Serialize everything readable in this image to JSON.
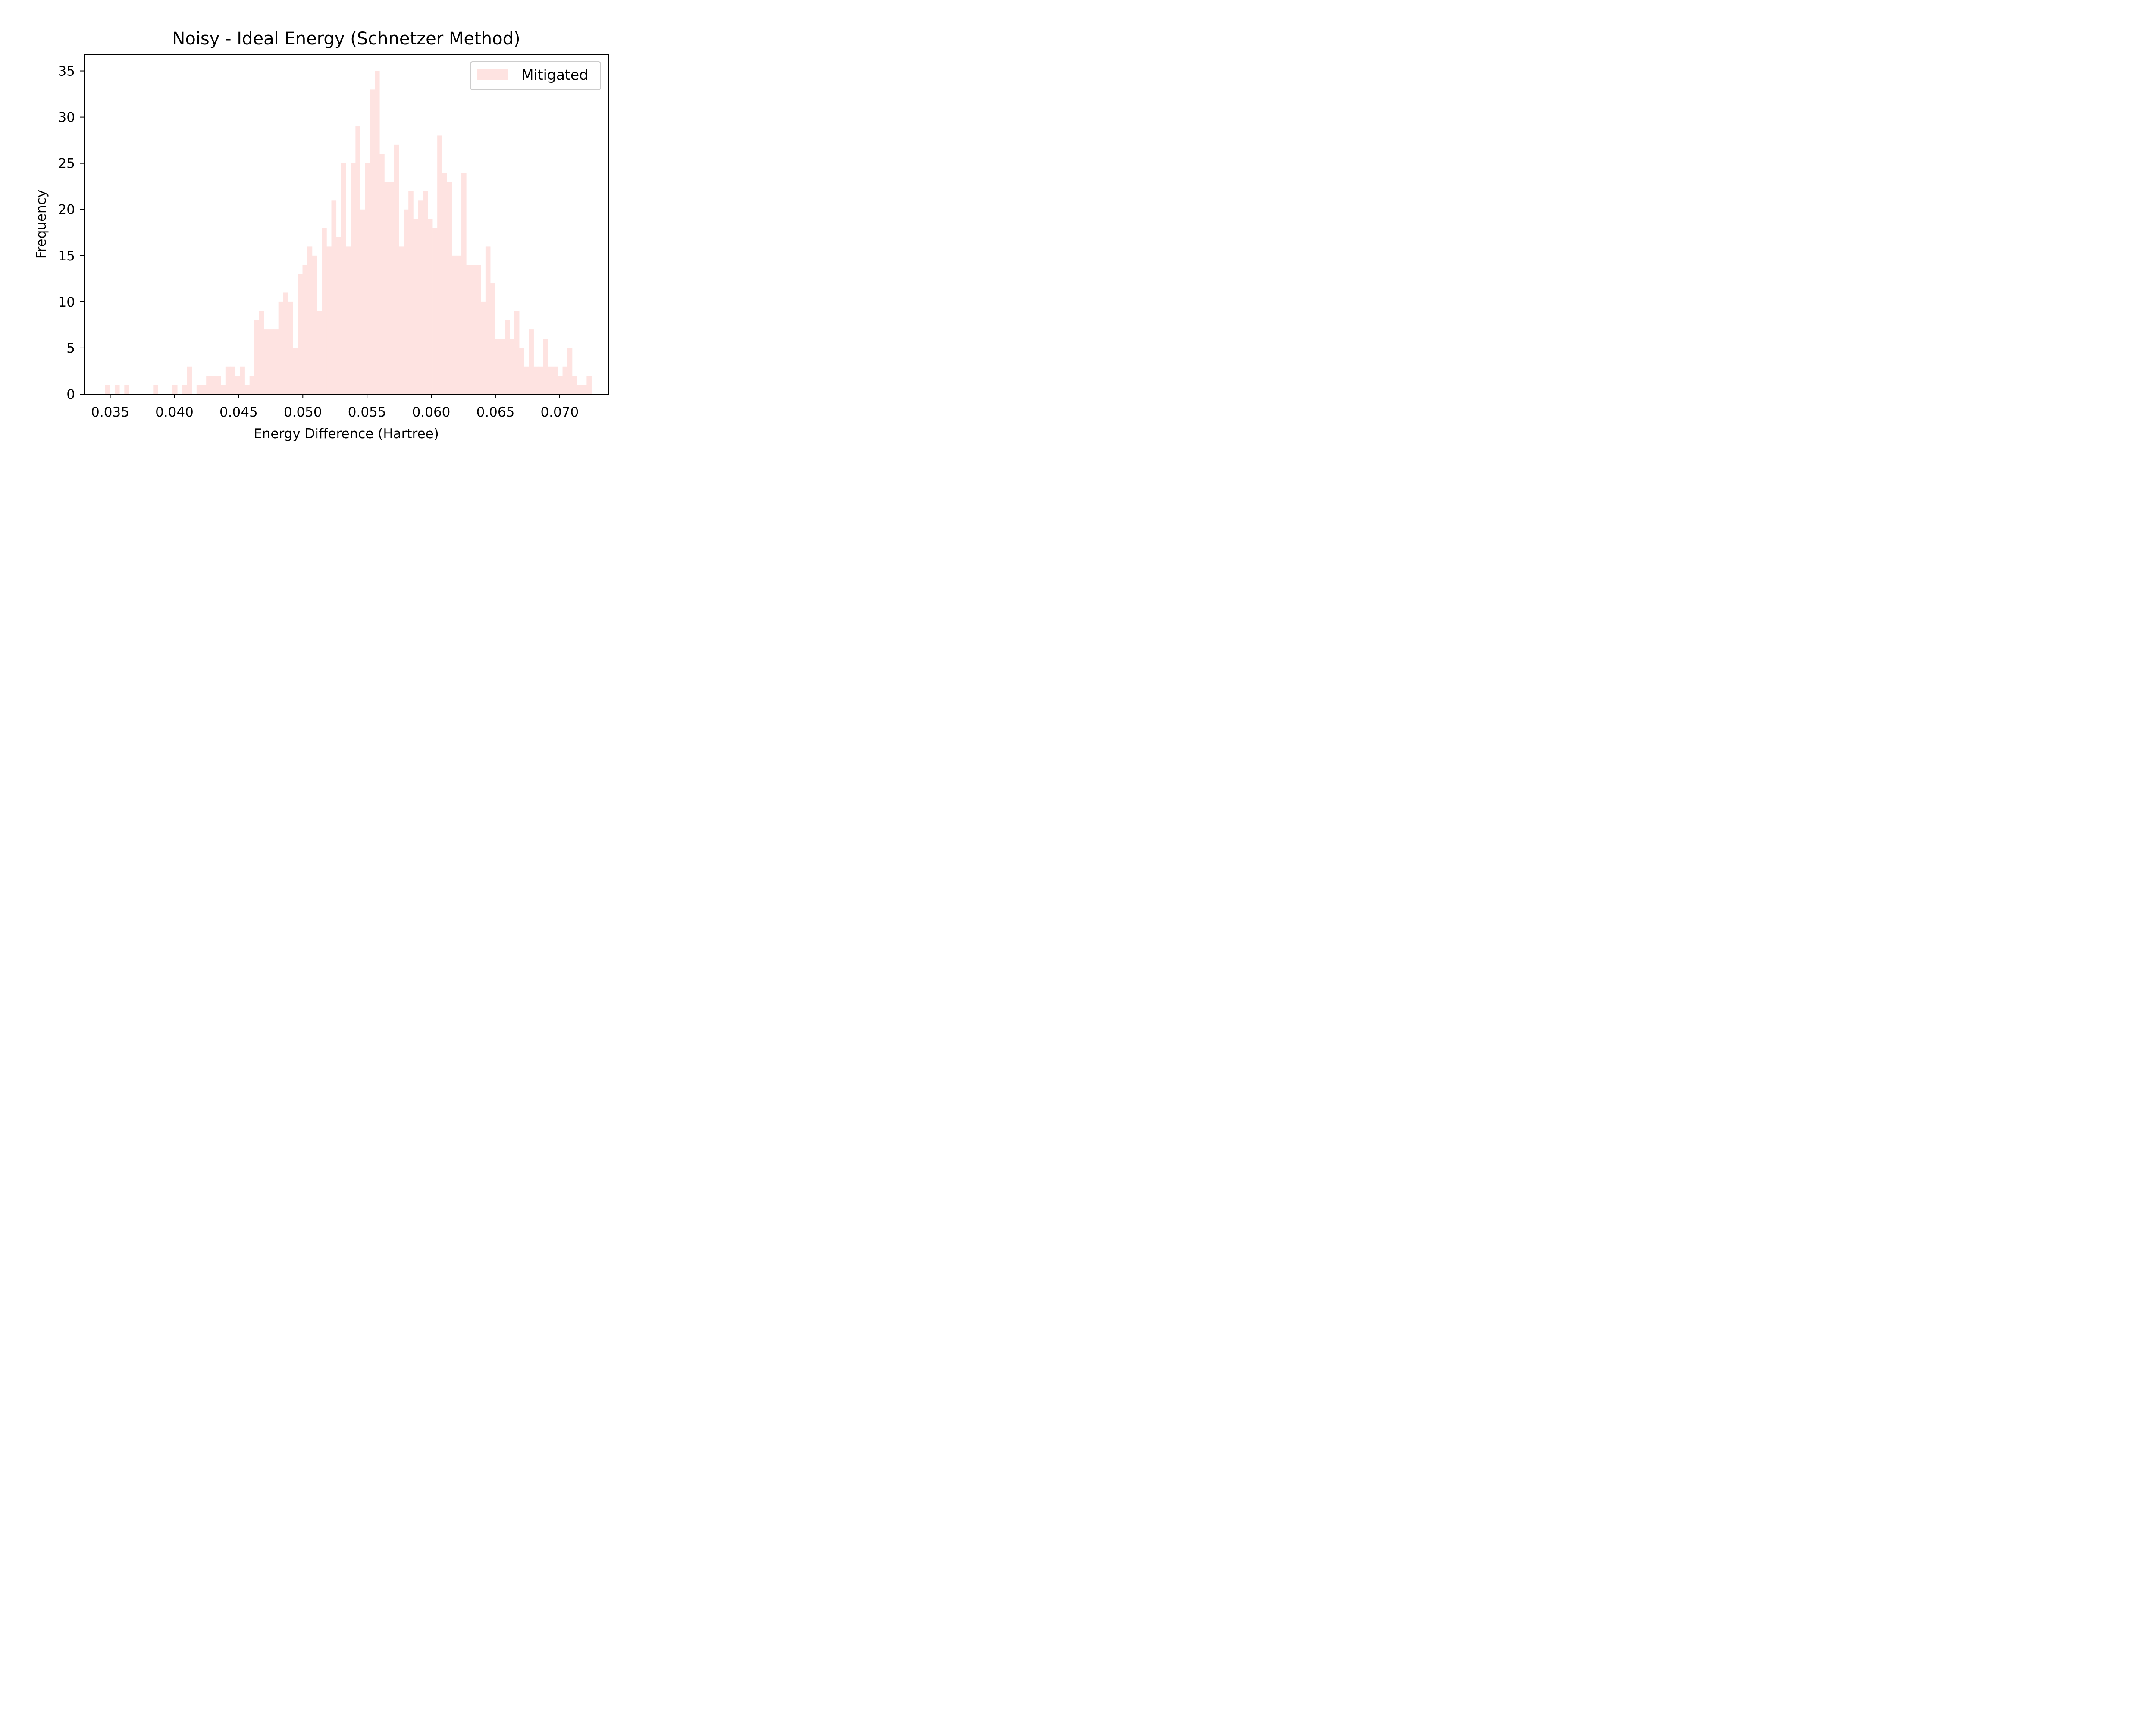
{
  "chart_data": {
    "type": "bar",
    "subtype": "histogram",
    "title": "Noisy - Ideal Energy (Schnetzer Method)",
    "xlabel": "Energy Difference (Hartree)",
    "ylabel": "Frequency",
    "xlim": [
      0.033,
      0.0738
    ],
    "ylim": [
      0,
      36.8
    ],
    "xticks": [
      0.035,
      0.04,
      0.045,
      0.05,
      0.055,
      0.06,
      0.065,
      0.07
    ],
    "xtick_labels": [
      "0.035",
      "0.040",
      "0.045",
      "0.050",
      "0.055",
      "0.060",
      "0.065",
      "0.070"
    ],
    "yticks": [
      0,
      5,
      10,
      15,
      20,
      25,
      30,
      35
    ],
    "ytick_labels": [
      "0",
      "5",
      "10",
      "15",
      "20",
      "25",
      "30",
      "35"
    ],
    "bin_start": 0.0346,
    "bin_width": 0.000375,
    "series": [
      {
        "name": "Mitigated",
        "color": "#fee3e1",
        "counts": [
          1,
          0,
          1,
          0,
          1,
          0,
          0,
          0,
          0,
          0,
          1,
          0,
          0,
          0,
          1,
          0,
          1,
          3,
          0,
          1,
          1,
          2,
          2,
          2,
          1,
          3,
          3,
          2,
          3,
          1,
          2,
          8,
          9,
          7,
          7,
          7,
          10,
          11,
          10,
          5,
          13,
          14,
          16,
          15,
          9,
          18,
          16,
          21,
          17,
          25,
          16,
          25,
          29,
          20,
          25,
          33,
          35,
          26,
          23,
          23,
          27,
          16,
          20,
          22,
          19,
          21,
          22,
          19,
          18,
          28,
          24,
          23,
          15,
          15,
          24,
          14,
          14,
          14,
          10,
          16,
          12,
          6,
          6,
          8,
          6,
          9,
          5,
          3,
          7,
          3,
          3,
          6,
          3,
          3,
          2,
          3,
          5,
          2,
          1,
          1,
          2
        ]
      }
    ],
    "legend": {
      "position": "upper right",
      "entries": [
        "Mitigated"
      ]
    },
    "grid": false
  }
}
